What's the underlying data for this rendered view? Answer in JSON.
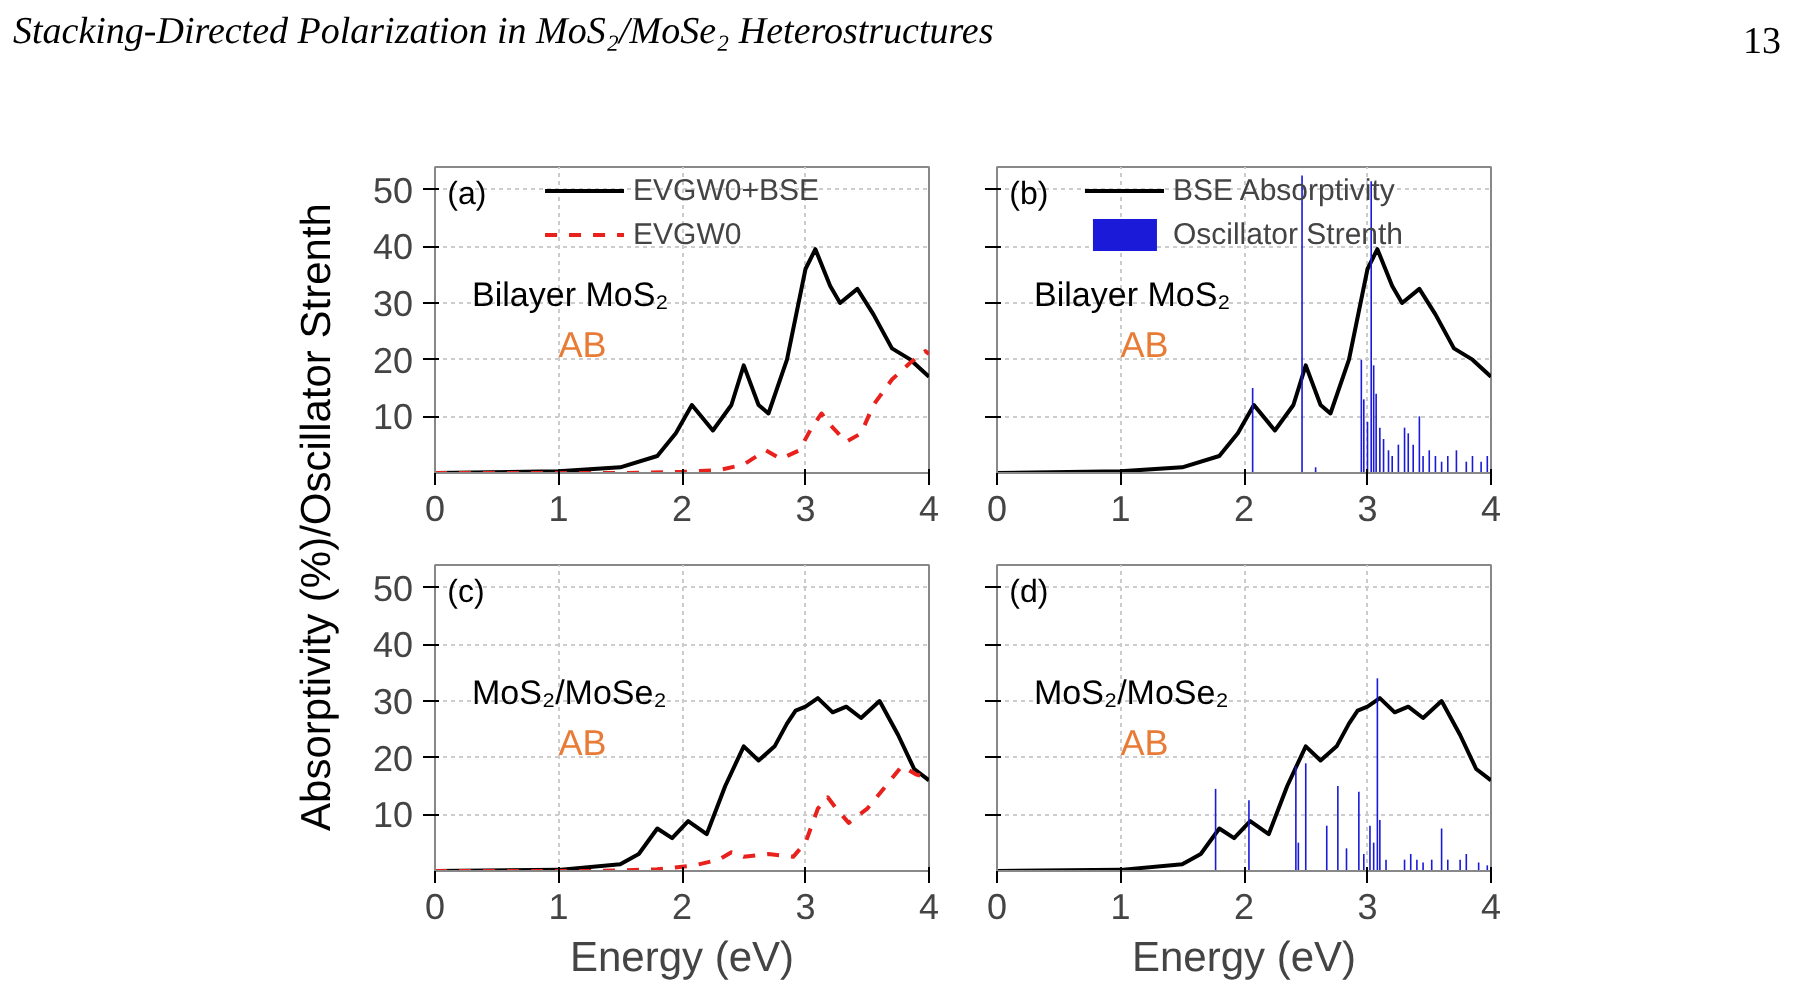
{
  "chart_data": [
    {
      "type": "other",
      "annotations": [
        "Stacking-Directed Polarization in MoS₂/MoSe₂ Heterostructures",
        "13"
      ]
    },
    {
      "type": "line",
      "ylabel": "Absorptivity (%)/Oscillator Strenth",
      "annotations": [
        "(a)",
        "Bilayer MoS₂",
        "AB"
      ],
      "xlim": [
        0,
        4
      ],
      "ylim": [
        0,
        54
      ],
      "xticks": [
        0,
        1,
        2,
        3,
        4
      ],
      "yticks": [
        10,
        20,
        30,
        40,
        50
      ],
      "grid": true,
      "legend": "top",
      "series": [
        {
          "name": "EVGW0+BSE",
          "color": "#000000",
          "x": [
            0,
            1.0,
            1.5,
            1.8,
            1.95,
            2.08,
            2.25,
            2.4,
            2.5,
            2.62,
            2.7,
            2.85,
            3.0,
            3.08,
            3.2,
            3.28,
            3.42,
            3.55,
            3.7,
            3.85,
            4.0
          ],
          "values": [
            0,
            0.3,
            1.0,
            3,
            7,
            12,
            7.5,
            12,
            19,
            12,
            10.5,
            20,
            36,
            39.5,
            33,
            30,
            32.5,
            28,
            22,
            20,
            17
          ]
        },
        {
          "name": "EVGW0",
          "color": "#e8211c",
          "line_style": "dashed",
          "x": [
            0,
            1.5,
            2.0,
            2.3,
            2.5,
            2.68,
            2.8,
            2.95,
            3.05,
            3.13,
            3.2,
            3.33,
            3.45,
            3.55,
            3.7,
            3.85,
            3.97,
            4.0
          ],
          "values": [
            0,
            0,
            0.2,
            0.5,
            1.5,
            4,
            2.5,
            4,
            8,
            10.5,
            8.5,
            5.5,
            7,
            12,
            16.5,
            19.5,
            21.5,
            21
          ]
        }
      ]
    },
    {
      "type": "line",
      "annotations": [
        "(b)",
        "Bilayer MoS₂",
        "AB"
      ],
      "xlim": [
        0,
        4
      ],
      "ylim": [
        0,
        54
      ],
      "xticks": [
        0,
        1,
        2,
        3,
        4
      ],
      "yticks": [
        10,
        20,
        30,
        40,
        50
      ],
      "grid": true,
      "legend": "top",
      "tick_labels": "x",
      "series": [
        {
          "name": "BSE Absorptivity",
          "color": "#000000",
          "x": [
            0,
            1.0,
            1.5,
            1.8,
            1.95,
            2.08,
            2.25,
            2.4,
            2.5,
            2.62,
            2.7,
            2.85,
            3.0,
            3.08,
            3.2,
            3.28,
            3.42,
            3.55,
            3.7,
            3.85,
            4.0
          ],
          "values": [
            0,
            0.3,
            1.0,
            3,
            7,
            12,
            7.5,
            12,
            19,
            12,
            10.5,
            20,
            36,
            39.5,
            33,
            30,
            32.5,
            28,
            22,
            20,
            17
          ]
        },
        {
          "name": "Oscillator Strenth",
          "type": "bar",
          "color": "#1a1ad8",
          "x": [
            2.07,
            2.47,
            2.58,
            2.95,
            2.97,
            3.0,
            3.03,
            3.05,
            3.07,
            3.1,
            3.13,
            3.17,
            3.2,
            3.25,
            3.3,
            3.33,
            3.37,
            3.42,
            3.45,
            3.5,
            3.55,
            3.6,
            3.65,
            3.72,
            3.8,
            3.85,
            3.92,
            3.97
          ],
          "values": [
            15,
            52.5,
            1,
            20,
            13,
            9,
            51.5,
            19,
            14,
            8,
            6,
            4,
            3,
            5,
            8,
            7,
            5,
            10,
            3,
            4,
            3,
            2,
            3,
            4,
            2,
            3,
            2,
            3
          ]
        }
      ]
    },
    {
      "type": "line",
      "xlabel": "Energy (eV)",
      "annotations": [
        "(c)",
        "MoS₂/MoSe₂",
        "AB"
      ],
      "xlim": [
        0,
        4
      ],
      "ylim": [
        0,
        54
      ],
      "xticks": [
        0,
        1,
        2,
        3,
        4
      ],
      "yticks": [
        10,
        20,
        30,
        40,
        50
      ],
      "grid": true,
      "series": [
        {
          "color": "#000000",
          "x": [
            0,
            1.0,
            1.5,
            1.65,
            1.8,
            1.92,
            2.05,
            2.2,
            2.35,
            2.5,
            2.62,
            2.75,
            2.85,
            2.92,
            3.0,
            3.1,
            3.22,
            3.33,
            3.45,
            3.6,
            3.75,
            3.88,
            4.0
          ],
          "values": [
            0,
            0.2,
            1.2,
            3,
            7.5,
            5.8,
            8.8,
            6.5,
            15,
            22,
            19.5,
            22,
            26,
            28.3,
            29,
            30.5,
            28,
            29,
            27,
            30,
            24,
            18,
            16
          ]
        },
        {
          "color": "#e8211c",
          "line_style": "dashed",
          "x": [
            0,
            1.3,
            1.8,
            2.1,
            2.3,
            2.4,
            2.5,
            2.7,
            2.9,
            3.0,
            3.1,
            3.18,
            3.25,
            3.35,
            3.5,
            3.65,
            3.78,
            3.9,
            4.0
          ],
          "values": [
            0,
            0,
            0.3,
            1,
            2,
            3.3,
            2.5,
            3,
            2.5,
            5,
            11,
            13,
            11,
            8.5,
            11,
            15,
            18.5,
            17,
            16.5
          ]
        }
      ]
    },
    {
      "type": "line",
      "xlabel": "Energy (eV)",
      "annotations": [
        "(d)",
        "MoS₂/MoSe₂",
        "AB"
      ],
      "xlim": [
        0,
        4
      ],
      "ylim": [
        0,
        54
      ],
      "xticks": [
        0,
        1,
        2,
        3,
        4
      ],
      "yticks": [
        10,
        20,
        30,
        40,
        50
      ],
      "grid": true,
      "tick_labels": "x",
      "series": [
        {
          "color": "#000000",
          "x": [
            0,
            1.0,
            1.5,
            1.65,
            1.8,
            1.92,
            2.05,
            2.2,
            2.35,
            2.5,
            2.62,
            2.75,
            2.85,
            2.92,
            3.0,
            3.1,
            3.22,
            3.33,
            3.45,
            3.6,
            3.75,
            3.88,
            4.0
          ],
          "values": [
            0,
            0.2,
            1.2,
            3,
            7.5,
            5.8,
            8.8,
            6.5,
            15,
            22,
            19.5,
            22,
            26,
            28.3,
            29,
            30.5,
            28,
            29,
            27,
            30,
            24,
            18,
            16
          ]
        },
        {
          "type": "bar",
          "color": "#1a1ad8",
          "x": [
            1.77,
            2.04,
            2.42,
            2.44,
            2.5,
            2.67,
            2.76,
            2.83,
            2.93,
            2.97,
            3.02,
            3.05,
            3.08,
            3.1,
            3.15,
            3.3,
            3.35,
            3.4,
            3.45,
            3.52,
            3.6,
            3.65,
            3.75,
            3.8,
            3.9,
            3.97
          ],
          "values": [
            14.5,
            12.5,
            18.5,
            5,
            19,
            8,
            15,
            4,
            14,
            3,
            8,
            5,
            34,
            9,
            2,
            2,
            3,
            2,
            1.5,
            2,
            7.5,
            2,
            2,
            3,
            1.5,
            1
          ]
        }
      ]
    }
  ]
}
